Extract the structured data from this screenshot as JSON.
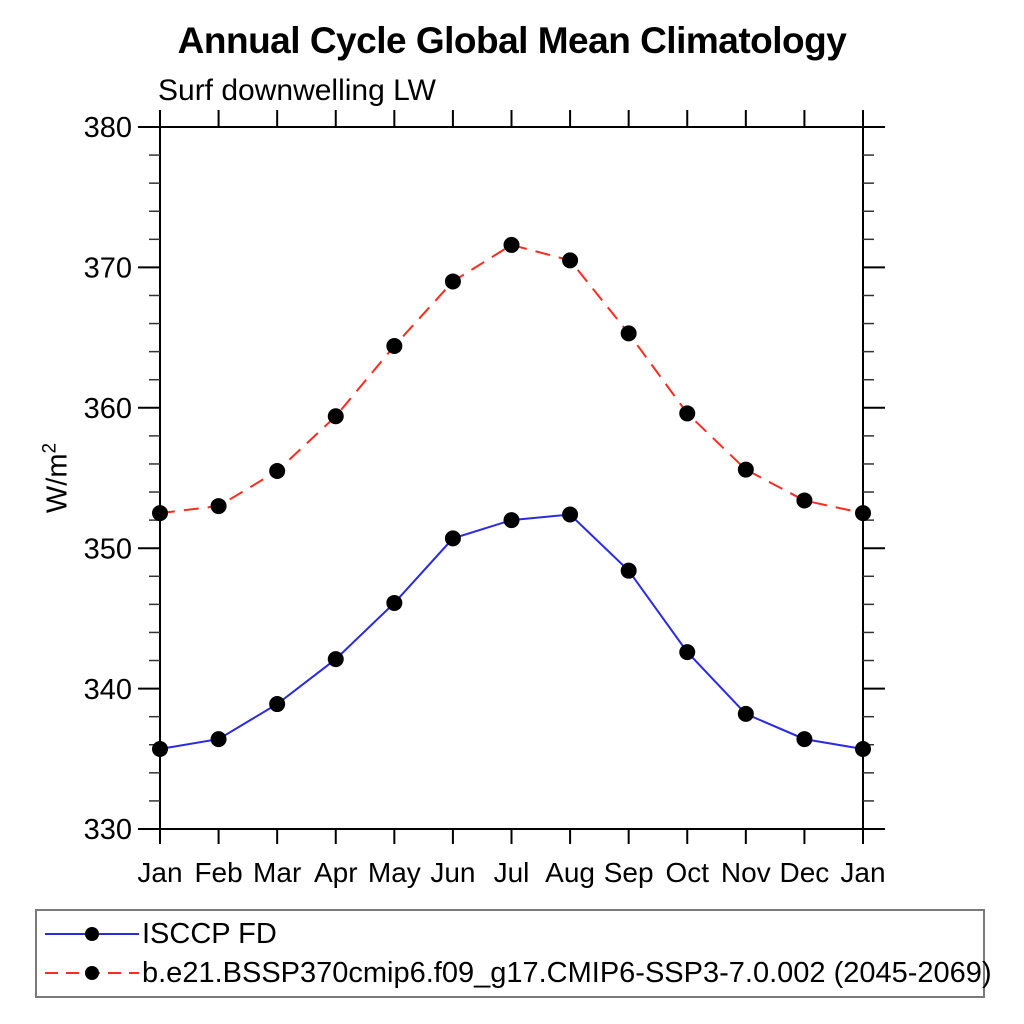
{
  "chart_data": {
    "type": "line",
    "title": "Annual Cycle Global Mean Climatology",
    "subtitle": "Surf downwelling LW",
    "ylabel": "W/m2",
    "ylabel_base": "W/m",
    "ylabel_exponent": "2",
    "x_labels": [
      "Jan",
      "Feb",
      "Mar",
      "Apr",
      "May",
      "Jun",
      "Jul",
      "Aug",
      "Sep",
      "Oct",
      "Nov",
      "Dec",
      "Jan"
    ],
    "ylim": [
      330,
      380
    ],
    "y_major_ticks": [
      330,
      340,
      350,
      360,
      370,
      380
    ],
    "y_minor_tick_step": 2,
    "grid": false,
    "legend_position": "bottom-left-box",
    "axis_color": "#000000",
    "marker_color": "#000000",
    "series": [
      {
        "name": "ISCCP FD",
        "line_style": "solid",
        "color": "#2a2ae0",
        "marker": "circle",
        "values": [
          335.7,
          336.4,
          338.9,
          342.1,
          346.1,
          350.7,
          352.0,
          352.4,
          348.4,
          342.6,
          338.2,
          336.4,
          335.7
        ]
      },
      {
        "name": "b.e21.BSSP370cmip6.f09_g17.CMIP6-SSP3-7.0.002 (2045-2069)",
        "line_style": "dashed",
        "color": "#f92c20",
        "marker": "circle",
        "values": [
          352.5,
          353.0,
          355.5,
          359.4,
          364.4,
          369.0,
          371.6,
          370.5,
          365.3,
          359.6,
          355.6,
          353.4,
          352.5
        ]
      }
    ]
  }
}
